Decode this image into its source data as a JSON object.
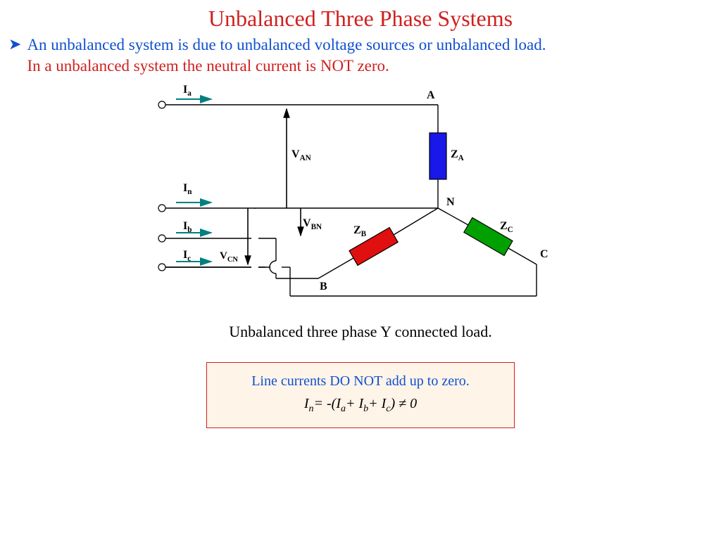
{
  "title": {
    "text": "Unbalanced Three Phase Systems",
    "color": "#d02020"
  },
  "bullet": {
    "arrow_color": "#1050d0",
    "line1": {
      "text": "An unbalanced system is due to unbalanced voltage sources or unbalanced load.",
      "color": "#1050d0"
    },
    "line2": {
      "text": "In a unbalanced system the neutral current is NOT zero.",
      "color": "#d02020"
    }
  },
  "caption": {
    "text": "Unbalanced three phase Y connected load.",
    "color": "#000000"
  },
  "formula": {
    "border_color": "#d02020",
    "bg_color": "#fff4e8",
    "line1": {
      "text": "Line currents DO NOT add up to zero.",
      "color": "#1050d0"
    },
    "line2_html": "I<sub>n</sub>= -(I<sub>a</sub>+ I<sub>b</sub>+ I<sub>c</sub>) ≠ 0",
    "line2_color": "#000000"
  },
  "diagram": {
    "stroke": "#000000",
    "arrow_color": "#008080",
    "terminal_fill": "#ffffff",
    "za": {
      "color": "#1818e8",
      "label": "Z",
      "sub": "A"
    },
    "zb": {
      "color": "#e01010",
      "label": "Z",
      "sub": "B"
    },
    "zc": {
      "color": "#00a000",
      "label": "Z",
      "sub": "C"
    },
    "labels": {
      "Ia": "I",
      "Ia_sub": "a",
      "In": "I",
      "In_sub": "n",
      "Ib": "I",
      "Ib_sub": "b",
      "Ic": "I",
      "Ic_sub": "c",
      "VAN": "V",
      "VAN_sub": "AN",
      "VBN": "V",
      "VBN_sub": "BN",
      "VCN": "V",
      "VCN_sub": "CN",
      "A": "A",
      "B": "B",
      "C": "C",
      "N": "N"
    }
  }
}
